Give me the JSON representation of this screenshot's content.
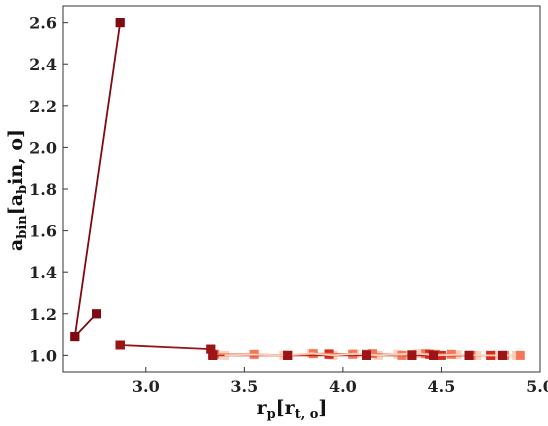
{
  "chart_data": {
    "type": "scatter",
    "xlabel": {
      "main": "r",
      "sub": "p",
      "bracket_main": "r",
      "bracket_sub": "t, o"
    },
    "ylabel": {
      "main": "a",
      "sub": "bin",
      "bracket_open": "[a",
      "bracket_sub": "b",
      "bracket_rest": "in, o]"
    },
    "xlim": [
      2.58,
      5.0
    ],
    "ylim": [
      0.92,
      2.68
    ],
    "xticks": [
      "3.0",
      "3.5",
      "4.0",
      "4.5",
      "5.0"
    ],
    "yticks": [
      "1.0",
      "1.2",
      "1.4",
      "1.6",
      "1.8",
      "2.0",
      "2.2",
      "2.4",
      "2.6"
    ],
    "grid": false,
    "series": [
      {
        "color": "#7f0a0f",
        "x": [
          2.64,
          2.75,
          2.87,
          2.87
        ],
        "y": [
          1.09,
          1.2,
          1.05,
          2.6
        ],
        "line_order": [
          1,
          0,
          3
        ]
      },
      {
        "color": "#9b1416",
        "x": [
          2.87,
          3.33,
          3.34,
          3.72,
          4.12,
          4.35,
          4.46,
          4.64,
          4.81
        ],
        "y": [
          1.05,
          1.03,
          1.0,
          1.0,
          1.0,
          1.0,
          1.0,
          1.0,
          1.0
        ]
      },
      {
        "color": "#d22a1e",
        "x": [
          3.34,
          3.72,
          3.93,
          4.12,
          4.35,
          4.44,
          4.5,
          4.64,
          4.75
        ],
        "y": [
          1.005,
          1.0,
          1.005,
          1.005,
          1.003,
          1.005,
          1.0,
          1.0,
          1.0
        ]
      },
      {
        "color": "#f4775a",
        "x": [
          3.35,
          3.55,
          3.72,
          3.85,
          3.93,
          4.05,
          4.15,
          4.3,
          4.42,
          4.47,
          4.55,
          4.65,
          4.75,
          4.82,
          4.9
        ],
        "y": [
          1.005,
          1.005,
          1.0,
          1.008,
          1.008,
          1.005,
          1.008,
          1.0,
          1.008,
          1.005,
          1.005,
          1.0,
          1.0,
          1.0,
          1.0
        ]
      },
      {
        "color": "#fcd2bc",
        "x": [
          3.4,
          3.55,
          3.7,
          3.84,
          3.95,
          4.06,
          4.18,
          4.28,
          4.38,
          4.48,
          4.58,
          4.68,
          4.78,
          4.88
        ],
        "y": [
          1.0,
          1.003,
          1.0,
          1.01,
          1.0,
          1.008,
          1.0,
          1.005,
          1.008,
          1.0,
          1.003,
          1.0,
          1.0,
          1.0
        ]
      }
    ]
  }
}
